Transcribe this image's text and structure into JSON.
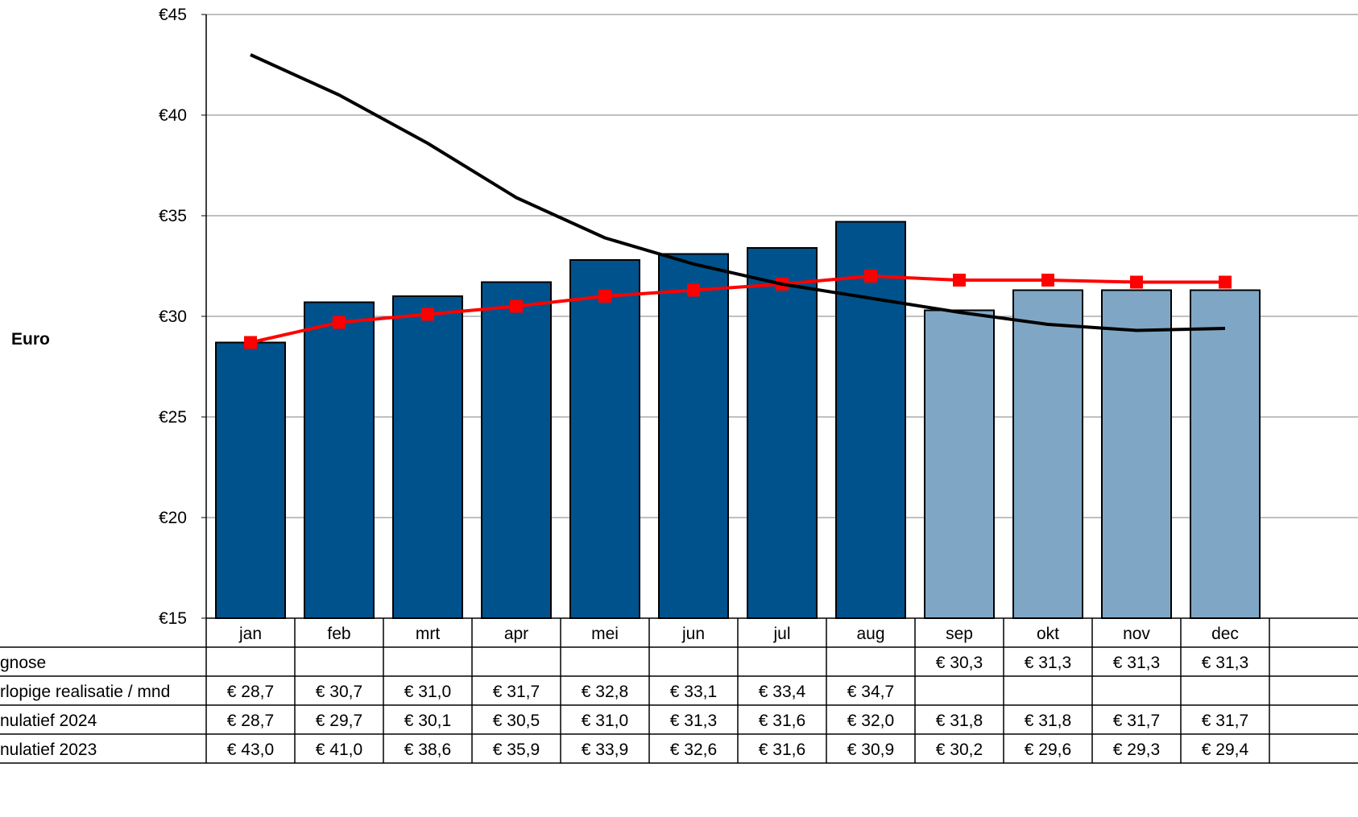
{
  "chart_data": {
    "type": "bar",
    "ylabel": "Euro",
    "ylim": [
      15,
      45
    ],
    "yticks": [
      15,
      20,
      25,
      30,
      35,
      40,
      45
    ],
    "ytick_labels": [
      "€15",
      "€20",
      "€25",
      "€30",
      "€35",
      "€40",
      "€45"
    ],
    "grid": true,
    "categories": [
      "jan",
      "feb",
      "mrt",
      "apr",
      "mei",
      "jun",
      "jul",
      "aug",
      "sep",
      "okt",
      "nov",
      "dec"
    ],
    "bars": {
      "realisatie_color": "#00528C",
      "prognose_color": "#7FA7C5",
      "values": [
        28.7,
        30.7,
        31.0,
        31.7,
        32.8,
        33.1,
        33.4,
        34.7,
        30.3,
        31.3,
        31.3,
        31.3
      ],
      "is_prognose": [
        false,
        false,
        false,
        false,
        false,
        false,
        false,
        false,
        true,
        true,
        true,
        true
      ]
    },
    "series": [
      {
        "row_label": "gnose",
        "kind": "bar-prognose",
        "cells": [
          "",
          "",
          "",
          "",
          "",
          "",
          "",
          "",
          "€ 30,3",
          "€ 31,3",
          "€ 31,3",
          "€ 31,3"
        ],
        "values": [
          null,
          null,
          null,
          null,
          null,
          null,
          null,
          null,
          30.3,
          31.3,
          31.3,
          31.3
        ]
      },
      {
        "row_label": "rlopige realisatie / mnd",
        "kind": "bar-realisatie",
        "cells": [
          "€ 28,7",
          "€ 30,7",
          "€ 31,0",
          "€ 31,7",
          "€ 32,8",
          "€ 33,1",
          "€ 33,4",
          "€ 34,7",
          "",
          "",
          "",
          ""
        ],
        "values": [
          28.7,
          30.7,
          31.0,
          31.7,
          32.8,
          33.1,
          33.4,
          34.7,
          null,
          null,
          null,
          null
        ]
      },
      {
        "row_label": "nulatief 2024",
        "kind": "line-markers",
        "color": "#FF0000",
        "cells": [
          "€ 28,7",
          "€ 29,7",
          "€ 30,1",
          "€ 30,5",
          "€ 31,0",
          "€ 31,3",
          "€ 31,6",
          "€ 32,0",
          "€ 31,8",
          "€ 31,8",
          "€ 31,7",
          "€ 31,7"
        ],
        "values": [
          28.7,
          29.7,
          30.1,
          30.5,
          31.0,
          31.3,
          31.6,
          32.0,
          31.8,
          31.8,
          31.7,
          31.7
        ]
      },
      {
        "row_label": "nulatief 2023",
        "kind": "line",
        "color": "#000000",
        "cells": [
          "€ 43,0",
          "€ 41,0",
          "€ 38,6",
          "€ 35,9",
          "€ 33,9",
          "€ 32,6",
          "€ 31,6",
          "€ 30,9",
          "€ 30,2",
          "€ 29,6",
          "€ 29,3",
          "€ 29,4"
        ],
        "values": [
          43.0,
          41.0,
          38.6,
          35.9,
          33.9,
          32.6,
          31.6,
          30.9,
          30.2,
          29.6,
          29.3,
          29.4
        ]
      }
    ]
  }
}
